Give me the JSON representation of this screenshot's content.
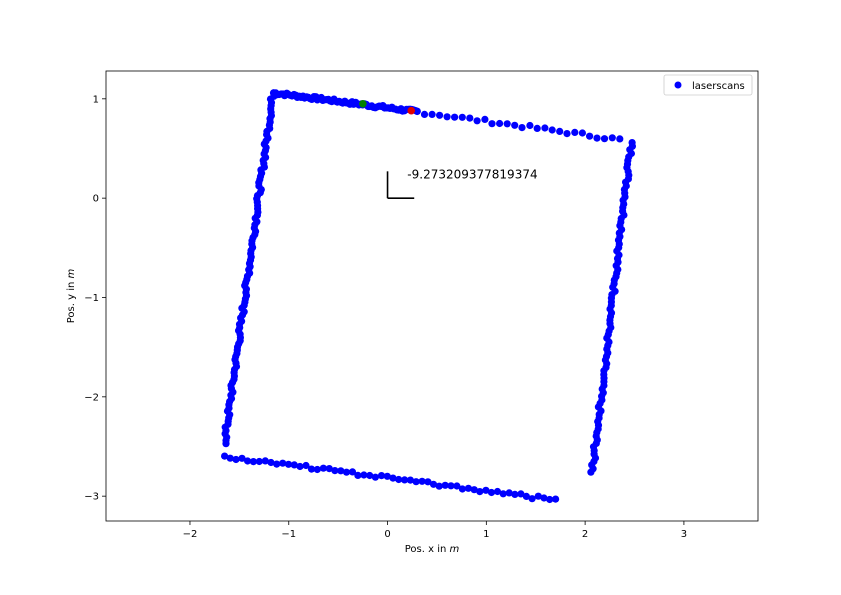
{
  "chart_data": {
    "type": "scatter",
    "title": "",
    "xlabel": "Pos. x in ",
    "xlabel_unit": "m",
    "ylabel": "Pos. y in ",
    "ylabel_unit": "m",
    "xlim": [
      -2.85,
      3.75
    ],
    "ylim": [
      -3.25,
      1.28
    ],
    "xticks": [
      -2,
      -1,
      0,
      1,
      2,
      3
    ],
    "xtick_labels": [
      "−2",
      "−1",
      "0",
      "1",
      "2",
      "3"
    ],
    "yticks": [
      1,
      0,
      -1,
      -2,
      -3
    ],
    "ytick_labels": [
      "1",
      "0",
      "−1",
      "−2",
      "−3"
    ],
    "grid": false,
    "legend": {
      "placement": "top-right",
      "entries": [
        "laserscans"
      ]
    },
    "colors": {
      "scans": "#0000ff",
      "start": "#008000",
      "end": "#e00000",
      "frame": "#000000"
    },
    "edges": [
      {
        "from": [
          -1.15,
          1.06
        ],
        "to": [
          0.3,
          0.87
        ],
        "n": 80
      },
      {
        "from": [
          0.3,
          0.87
        ],
        "to": [
          2.35,
          0.59
        ],
        "n": 28
      },
      {
        "from": [
          2.47,
          0.56
        ],
        "to": [
          2.07,
          -2.76
        ],
        "n": 92
      },
      {
        "from": [
          1.7,
          -3.04
        ],
        "to": [
          -1.65,
          -2.6
        ],
        "n": 58
      },
      {
        "from": [
          -1.65,
          -2.47
        ],
        "to": [
          -1.16,
          1.06
        ],
        "n": 110
      }
    ],
    "special_points": [
      {
        "name": "start",
        "x": -0.25,
        "y": 0.95
      },
      {
        "name": "end",
        "x": 0.24,
        "y": 0.88
      }
    ],
    "annotation": {
      "text": "-9.273209377819374",
      "x": 0.2,
      "y": 0.2
    },
    "pose_marker": {
      "x": 0,
      "y": 0,
      "arm_x": 0.27,
      "arm_y": 0.27
    }
  }
}
